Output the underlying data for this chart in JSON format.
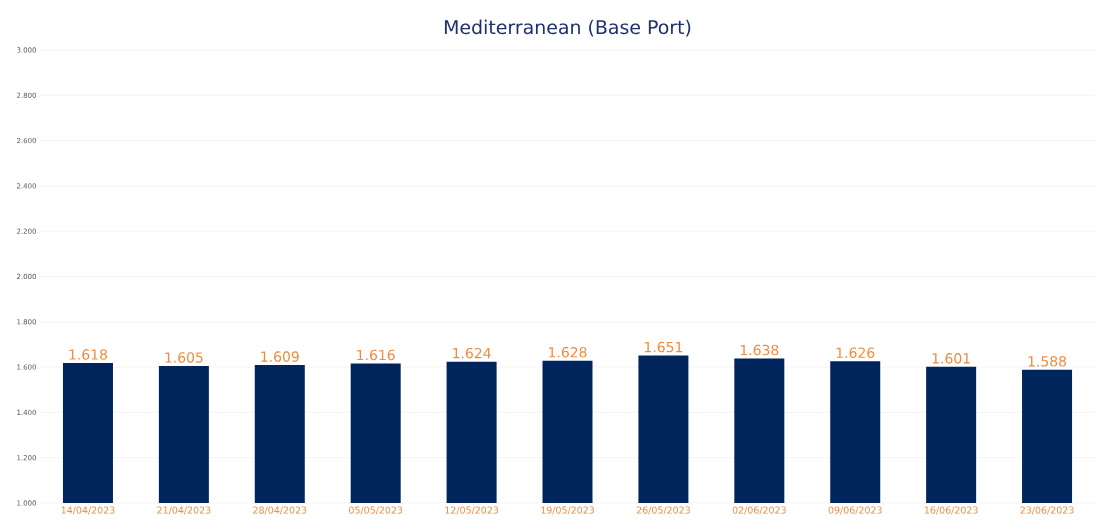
{
  "chart_data": {
    "type": "bar",
    "title": "Mediterranean (Base Port)",
    "categories": [
      "14/04/2023",
      "21/04/2023",
      "28/04/2023",
      "05/05/2023",
      "12/05/2023",
      "19/05/2023",
      "26/05/2023",
      "02/06/2023",
      "09/06/2023",
      "16/06/2023",
      "23/06/2023"
    ],
    "values": [
      1.618,
      1.605,
      1.609,
      1.616,
      1.624,
      1.628,
      1.651,
      1.638,
      1.626,
      1.601,
      1.588
    ],
    "value_labels": [
      "1.618",
      "1.605",
      "1.609",
      "1.616",
      "1.624",
      "1.628",
      "1.651",
      "1.638",
      "1.626",
      "1.601",
      "1.588"
    ],
    "color": "#00245c",
    "ylim": [
      1.0,
      3.0
    ],
    "yticks": [
      {
        "value": 1.0,
        "label": "1.000"
      },
      {
        "value": 1.2,
        "label": "1.200"
      },
      {
        "value": 1.4,
        "label": "1.400"
      },
      {
        "value": 1.6,
        "label": "1.600"
      },
      {
        "value": 1.8,
        "label": "1.800"
      },
      {
        "value": 2.0,
        "label": "2.000"
      },
      {
        "value": 2.2,
        "label": "2.200"
      },
      {
        "value": 2.4,
        "label": "2.400"
      },
      {
        "value": 2.6,
        "label": "2.600"
      },
      {
        "value": 2.8,
        "label": "2.800"
      },
      {
        "value": 3.0,
        "label": "3.000"
      }
    ],
    "grid": "y"
  }
}
